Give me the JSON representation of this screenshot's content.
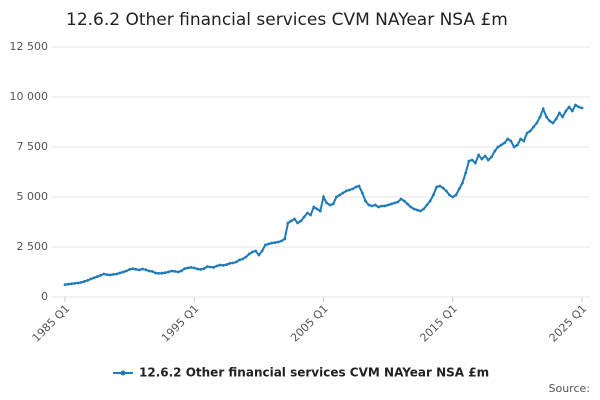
{
  "chart_data": {
    "type": "line",
    "title": "12.6.2 Other financial services CVM NAYear NSA £m",
    "source_label": "Source:",
    "categories": [
      "1985 Q1",
      null,
      null,
      null,
      null,
      null,
      null,
      null,
      null,
      null,
      null,
      null,
      null,
      null,
      null,
      null,
      null,
      null,
      null,
      null,
      null,
      null,
      null,
      null,
      null,
      null,
      null,
      null,
      null,
      null,
      null,
      null,
      null,
      null,
      null,
      null,
      null,
      null,
      null,
      null,
      "1995 Q1",
      null,
      null,
      null,
      null,
      null,
      null,
      null,
      null,
      null,
      null,
      null,
      null,
      null,
      null,
      null,
      null,
      null,
      null,
      null,
      null,
      null,
      null,
      null,
      null,
      null,
      null,
      null,
      null,
      null,
      null,
      null,
      null,
      null,
      null,
      null,
      null,
      null,
      null,
      null,
      "2005 Q1",
      null,
      null,
      null,
      null,
      null,
      null,
      null,
      null,
      null,
      null,
      null,
      null,
      null,
      null,
      null,
      null,
      null,
      null,
      null,
      null,
      null,
      null,
      null,
      null,
      null,
      null,
      null,
      null,
      null,
      null,
      null,
      null,
      null,
      null,
      null,
      null,
      null,
      null,
      null,
      "2015 Q1",
      null,
      null,
      null,
      null,
      null,
      null,
      null,
      null,
      null,
      null,
      null,
      null,
      null,
      null,
      null,
      null,
      null,
      null,
      null,
      null,
      null,
      null,
      null,
      null,
      null,
      null,
      null,
      null,
      null,
      null,
      null,
      null,
      null,
      null,
      null,
      null,
      null,
      null,
      null,
      "2025 Q1"
    ],
    "series": [
      {
        "name": "12.6.2 Other financial services CVM NAYear NSA £m",
        "color": "#1f7ab8",
        "values": [
          620,
          640,
          660,
          680,
          700,
          730,
          780,
          830,
          900,
          960,
          1020,
          1080,
          1150,
          1120,
          1100,
          1130,
          1150,
          1200,
          1250,
          1300,
          1380,
          1420,
          1380,
          1350,
          1400,
          1360,
          1300,
          1280,
          1200,
          1180,
          1190,
          1220,
          1250,
          1300,
          1280,
          1250,
          1300,
          1420,
          1450,
          1480,
          1450,
          1400,
          1380,
          1420,
          1520,
          1500,
          1480,
          1550,
          1600,
          1580,
          1620,
          1680,
          1700,
          1750,
          1850,
          1900,
          2000,
          2150,
          2250,
          2300,
          2100,
          2300,
          2600,
          2650,
          2700,
          2720,
          2750,
          2800,
          2900,
          3700,
          3800,
          3900,
          3700,
          3800,
          4000,
          4200,
          4100,
          4500,
          4400,
          4300,
          5000,
          4700,
          4600,
          4650,
          5000,
          5100,
          5200,
          5300,
          5350,
          5400,
          5500,
          5550,
          5200,
          4800,
          4600,
          4550,
          4600,
          4500,
          4550,
          4550,
          4600,
          4650,
          4700,
          4750,
          4900,
          4800,
          4650,
          4500,
          4400,
          4350,
          4300,
          4400,
          4600,
          4800,
          5100,
          5500,
          5550,
          5450,
          5300,
          5100,
          5000,
          5100,
          5400,
          5700,
          6200,
          6800,
          6850,
          6700,
          7100,
          6900,
          7050,
          6850,
          7000,
          7300,
          7500,
          7600,
          7700,
          7900,
          7800,
          7500,
          7600,
          7900,
          7800,
          8200,
          8300,
          8500,
          8700,
          9000,
          9400,
          9000,
          8800,
          8700,
          8900,
          9200,
          9000,
          9300,
          9500,
          9300,
          9600,
          9500,
          9450
        ]
      }
    ],
    "ylim": [
      0,
      12500
    ],
    "yticks": [
      0,
      {
        "value": 2500,
        "label": "2 500"
      },
      {
        "value": 5000,
        "label": "5 000"
      },
      {
        "value": 7500,
        "label": "7 500"
      },
      {
        "value": 10000,
        "label": "10 000"
      },
      {
        "value": 12500,
        "label": "12 500"
      }
    ],
    "grid": true
  }
}
